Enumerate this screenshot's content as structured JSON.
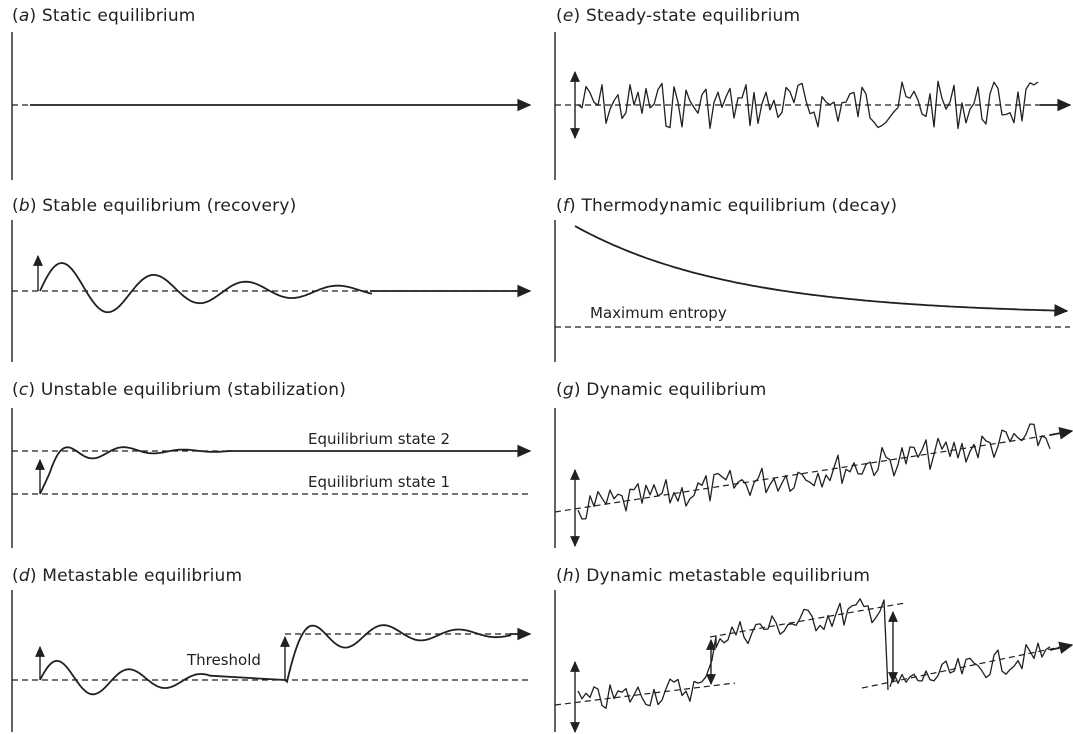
{
  "panels": {
    "a": {
      "letter": "a",
      "title": "Static equilibrium"
    },
    "b": {
      "letter": "b",
      "title": "Stable equilibrium (recovery)"
    },
    "c": {
      "letter": "c",
      "title": "Unstable equilibrium (stabilization)",
      "label_state2": "Equilibrium state 2",
      "label_state1": "Equilibrium state 1"
    },
    "d": {
      "letter": "d",
      "title": "Metastable equilibrium",
      "label_threshold": "Threshold"
    },
    "e": {
      "letter": "e",
      "title": "Steady-state equilibrium"
    },
    "f": {
      "letter": "f",
      "title": "Thermodynamic equilibrium (decay)",
      "label_entropy": "Maximum entropy"
    },
    "g": {
      "letter": "g",
      "title": "Dynamic equilibrium"
    },
    "h": {
      "letter": "h",
      "title": "Dynamic metastable equilibrium"
    }
  },
  "colors": {
    "ink": "#231f20",
    "background": "#ffffff"
  }
}
